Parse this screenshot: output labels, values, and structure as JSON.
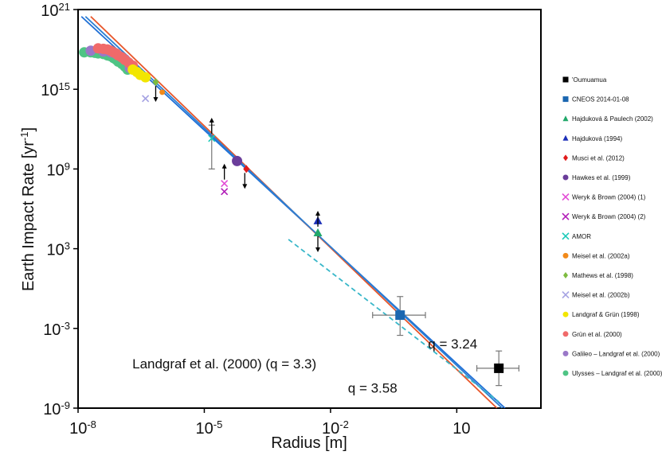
{
  "chart_data": {
    "type": "scatter",
    "title": "",
    "xlabel": "Radius [m]",
    "ylabel": "Earth Impact Rate [yr",
    "ylabel_sup": "-1",
    "ylabel_end": "]",
    "xscale": "log",
    "yscale": "log",
    "xlim": [
      1e-08,
      1000
    ],
    "ylim": [
      1e-09,
      1e+21
    ],
    "x_ticks": [
      {
        "value": 1e-08,
        "base": "10",
        "exp": "-8"
      },
      {
        "value": 1e-05,
        "base": "10",
        "exp": "-5"
      },
      {
        "value": 0.01,
        "base": "10",
        "exp": "-2"
      },
      {
        "value": 10,
        "base": "10",
        "exp": ""
      }
    ],
    "y_ticks": [
      {
        "value": 1e+21,
        "base": "10",
        "exp": "21"
      },
      {
        "value": 1000000000000000.0,
        "base": "10",
        "exp": "15"
      },
      {
        "value": 1000000000.0,
        "base": "10",
        "exp": "9"
      },
      {
        "value": 1000.0,
        "base": "10",
        "exp": "3"
      },
      {
        "value": 0.001,
        "base": "10",
        "exp": "-3"
      },
      {
        "value": 1e-09,
        "base": "10",
        "exp": "-9"
      }
    ],
    "grid": false,
    "legend_position": "outside-right",
    "fit_lines": [
      {
        "label": "q = 3.24",
        "color": "#1f6fd6",
        "points": [
          [
            1.2e-08,
            3e+20
          ],
          [
            140,
            1e-09
          ]
        ]
      },
      {
        "label": "q = 3.58",
        "color": "#e8562a",
        "points": [
          [
            2e-08,
            3e+20
          ],
          [
            90,
            1e-09
          ]
        ]
      },
      {
        "label": "Landgraf et al. (2000) (q = 3.3)",
        "color": "#2b7fd3",
        "points": [
          [
            1.5e-08,
            3e+20
          ],
          [
            120,
            1e-09
          ]
        ]
      },
      {
        "label": "",
        "color": "#38b7c9",
        "dashed": true,
        "points": [
          [
            0.001,
            5000.0
          ],
          [
            100,
            3e-09
          ]
        ]
      }
    ],
    "annotations": [
      {
        "text": "q = 3.24",
        "x": 8,
        "y": 3e-05
      },
      {
        "text": "Landgraf et al. (2000) (q = 3.3)",
        "x": 3e-05,
        "y": 1e-06
      },
      {
        "text": "q = 3.58",
        "x": 0.1,
        "y": 1.5e-08
      }
    ],
    "series": [
      {
        "name": "'Oumuamua",
        "color": "#000000",
        "marker": "square",
        "points": [
          {
            "x": 100,
            "y": 1e-06,
            "xerr": [
              30,
              300
            ],
            "yerr": [
              5e-08,
              2e-05
            ]
          }
        ]
      },
      {
        "name": "CNEOS 2014-01-08",
        "color": "#1a66b0",
        "marker": "square",
        "points": [
          {
            "x": 0.45,
            "y": 0.01,
            "xerr": [
              0.1,
              1.8
            ],
            "yerr": [
              0.0003,
              0.25
            ]
          }
        ]
      },
      {
        "name": "Hajduková & Paulech (2002)",
        "color": "#21a86a",
        "marker": "triangle",
        "points": [
          {
            "x": 0.005,
            "y": 15000.0,
            "limit": "both"
          }
        ]
      },
      {
        "name": "Hajduková (1994)",
        "color": "#1c2fb8",
        "marker": "triangle",
        "points": [
          {
            "x": 0.005,
            "y": 120000.0
          }
        ]
      },
      {
        "name": "Musci et al. (2012)",
        "color": "#e11b1b",
        "marker": "diamond",
        "points": [
          {
            "x": 0.0001,
            "y": 1000000000.0
          }
        ]
      },
      {
        "name": "Hawkes et al. (1999)",
        "color": "#6a3d9a",
        "marker": "circle",
        "points": [
          {
            "x": 6e-05,
            "y": 4000000000.0
          }
        ]
      },
      {
        "name": "Weryk & Brown (2004) (1)",
        "color": "#e34dd6",
        "marker": "x",
        "points": [
          {
            "x": 3e-05,
            "y": 80000000.0
          }
        ]
      },
      {
        "name": "Weryk & Brown (2004) (2)",
        "color": "#b21fb8",
        "marker": "x",
        "points": [
          {
            "x": 3e-05,
            "y": 20000000.0
          }
        ]
      },
      {
        "name": "AMOR",
        "color": "#1bc9b8",
        "marker": "x",
        "points": [
          {
            "x": 1.5e-05,
            "y": 200000000000.0,
            "yerr": [
              1000000000.0,
              2000000000000.0
            ],
            "limit": "upper"
          }
        ]
      },
      {
        "name": "Meisel et al. (2002a)",
        "color": "#f28a1a",
        "marker": "circle-small",
        "points": [
          {
            "x": 1e-06,
            "y": 600000000000000.0
          }
        ]
      },
      {
        "name": "Mathews et al. (1998)",
        "color": "#7dbb3f",
        "marker": "diamond",
        "points": [
          {
            "x": 7e-07,
            "y": 3500000000000000.0,
            "limit": "lower"
          }
        ]
      },
      {
        "name": "Meisel et al. (2002b)",
        "color": "#a6a3e3",
        "marker": "x",
        "points": [
          {
            "x": 4e-07,
            "y": 200000000000000.0
          }
        ]
      },
      {
        "name": "Landgraf & Grün (1998)",
        "color": "#f2e600",
        "marker": "circle",
        "points": [
          {
            "x": 2e-07,
            "y": 3e+16
          },
          {
            "x": 2.5e-07,
            "y": 2e+16
          },
          {
            "x": 3e-07,
            "y": 1.2e+16
          },
          {
            "x": 4e-07,
            "y": 8000000000000000.0
          }
        ]
      },
      {
        "name": "Grün et al. (2000)",
        "color": "#f06a6a",
        "marker": "circle",
        "points": [
          {
            "x": 3e-08,
            "y": 1.2e+18
          },
          {
            "x": 4e-08,
            "y": 1.1e+18
          },
          {
            "x": 5e-08,
            "y": 1e+18
          },
          {
            "x": 6e-08,
            "y": 8e+17
          },
          {
            "x": 7e-08,
            "y": 6e+17
          },
          {
            "x": 8e-08,
            "y": 5e+17
          },
          {
            "x": 9e-08,
            "y": 3.5e+17
          },
          {
            "x": 1.1e-07,
            "y": 2.5e+17
          },
          {
            "x": 1.3e-07,
            "y": 1.6e+17
          },
          {
            "x": 1.6e-07,
            "y": 1e+17
          },
          {
            "x": 2e-07,
            "y": 6e+16
          }
        ]
      },
      {
        "name": "Galileo – Landgraf et al. (2000)",
        "color": "#9a78c8",
        "marker": "circle",
        "points": [
          {
            "x": 2e-08,
            "y": 8e+17
          },
          {
            "x": 4e-08,
            "y": 7e+17
          },
          {
            "x": 6e-08,
            "y": 6e+17
          },
          {
            "x": 8e-08,
            "y": 4.5e+17
          },
          {
            "x": 1e-07,
            "y": 3e+17
          },
          {
            "x": 1.3e-07,
            "y": 1.8e+17
          },
          {
            "x": 1.7e-07,
            "y": 4e+16
          }
        ]
      },
      {
        "name": "Ulysses – Landgraf et al. (2000)",
        "color": "#4fc485",
        "marker": "circle",
        "points": [
          {
            "x": 1.4e-08,
            "y": 6e+17
          },
          {
            "x": 2e-08,
            "y": 6e+17
          },
          {
            "x": 2.5e-08,
            "y": 5.5e+17
          },
          {
            "x": 3e-08,
            "y": 5e+17
          },
          {
            "x": 4e-08,
            "y": 4.5e+17
          },
          {
            "x": 5e-08,
            "y": 3.5e+17
          },
          {
            "x": 6e-08,
            "y": 3e+17
          },
          {
            "x": 7e-08,
            "y": 2.2e+17
          },
          {
            "x": 8e-08,
            "y": 1.7e+17
          },
          {
            "x": 9e-08,
            "y": 1.2e+17
          },
          {
            "x": 1.1e-07,
            "y": 8e+16
          },
          {
            "x": 1.3e-07,
            "y": 5e+16
          },
          {
            "x": 1.5e-07,
            "y": 3e+16
          }
        ]
      }
    ]
  }
}
